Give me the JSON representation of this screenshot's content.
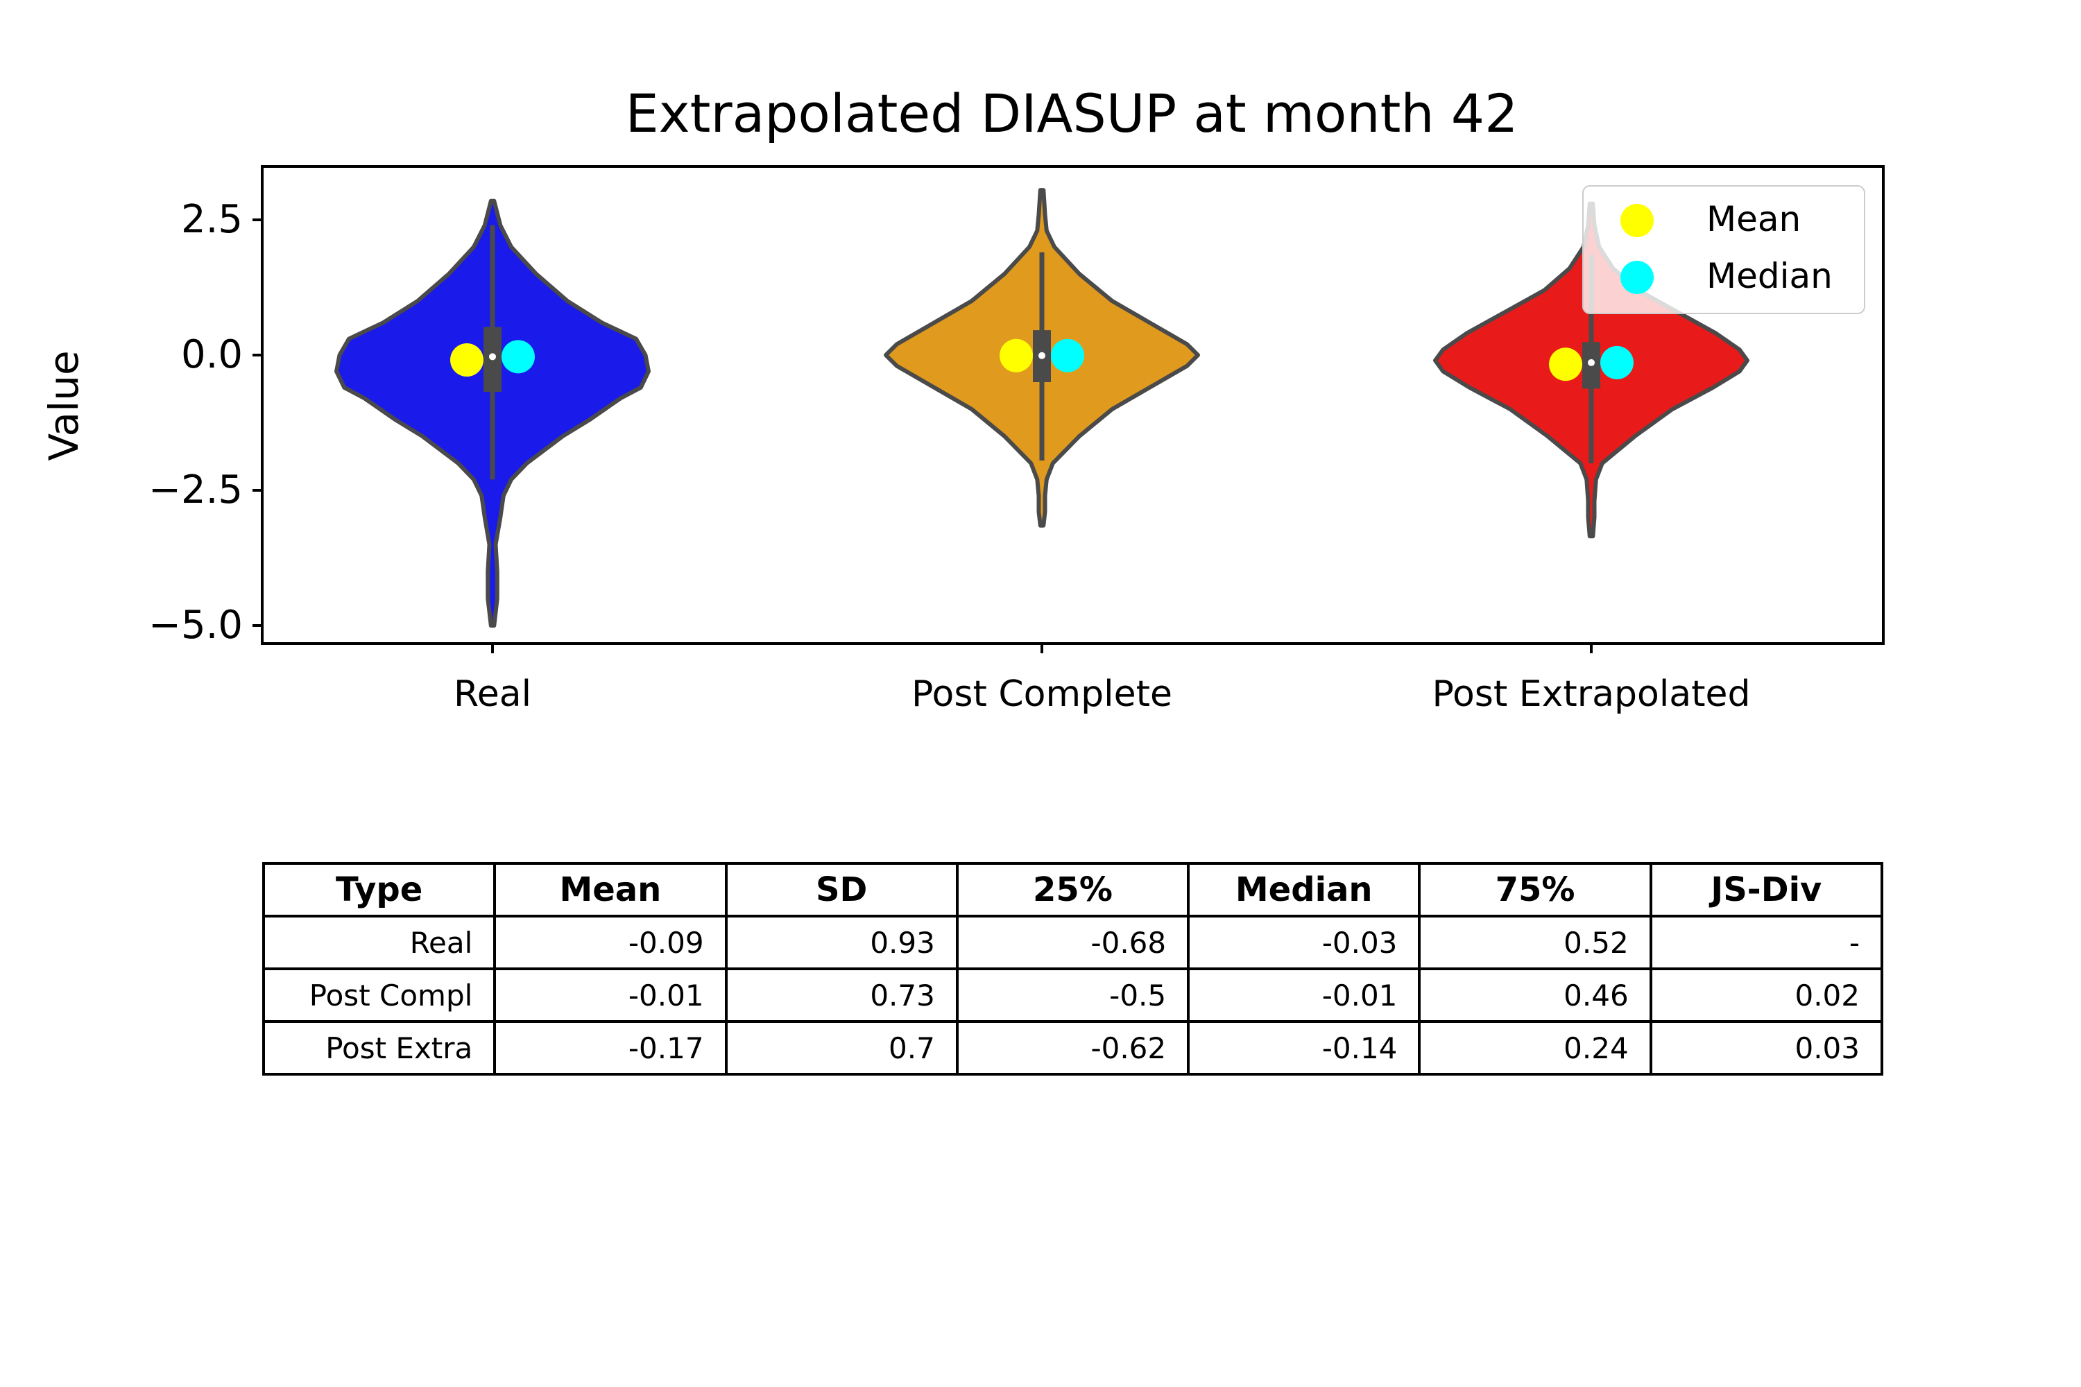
{
  "chart_data": {
    "type": "violin",
    "title": "Extrapolated DIASUP at month 42",
    "xlabel": "",
    "ylabel": "Value",
    "ylim": [
      -5.4,
      3.5
    ],
    "yticks": [
      2.5,
      0.0,
      -2.5,
      -5.0
    ],
    "ytick_labels": [
      "2.5",
      "0.0",
      "−2.5",
      "−5.0"
    ],
    "categories": [
      "Real",
      "Post Complete",
      "Post Extrapolated"
    ],
    "colors": [
      "#1a1aeb",
      "#e09b1f",
      "#e81a1a"
    ],
    "outline_color": "#4a4a4a",
    "series": [
      {
        "category": "Real",
        "mean": -0.09,
        "median": -0.03,
        "q1": -0.68,
        "q3": 0.52,
        "min": -5.0,
        "max": 2.85,
        "whisker_low": -2.3,
        "whisker_high": 2.4,
        "density": [
          [
            -5.0,
            0.01
          ],
          [
            -4.5,
            0.03
          ],
          [
            -4.0,
            0.03
          ],
          [
            -3.5,
            0.02
          ],
          [
            -3.0,
            0.05
          ],
          [
            -2.6,
            0.07
          ],
          [
            -2.3,
            0.12
          ],
          [
            -2.0,
            0.22
          ],
          [
            -1.5,
            0.45
          ],
          [
            -1.2,
            0.62
          ],
          [
            -0.8,
            0.82
          ],
          [
            -0.6,
            0.95
          ],
          [
            -0.3,
            1.0
          ],
          [
            0.0,
            0.98
          ],
          [
            0.3,
            0.92
          ],
          [
            0.6,
            0.7
          ],
          [
            1.0,
            0.48
          ],
          [
            1.5,
            0.28
          ],
          [
            2.0,
            0.12
          ],
          [
            2.4,
            0.05
          ],
          [
            2.85,
            0.01
          ]
        ]
      },
      {
        "category": "Post Complete",
        "mean": -0.01,
        "median": -0.01,
        "q1": -0.5,
        "q3": 0.46,
        "min": -3.15,
        "max": 3.05,
        "whisker_low": -1.95,
        "whisker_high": 1.9,
        "density": [
          [
            -3.15,
            0.01
          ],
          [
            -2.9,
            0.02
          ],
          [
            -2.6,
            0.02
          ],
          [
            -2.3,
            0.03
          ],
          [
            -2.0,
            0.07
          ],
          [
            -1.5,
            0.24
          ],
          [
            -1.0,
            0.45
          ],
          [
            -0.5,
            0.75
          ],
          [
            -0.2,
            0.93
          ],
          [
            0.0,
            1.0
          ],
          [
            0.2,
            0.93
          ],
          [
            0.5,
            0.75
          ],
          [
            1.0,
            0.45
          ],
          [
            1.5,
            0.24
          ],
          [
            2.0,
            0.08
          ],
          [
            2.3,
            0.03
          ],
          [
            2.6,
            0.02
          ],
          [
            3.05,
            0.01
          ]
        ]
      },
      {
        "category": "Post Extrapolated",
        "mean": -0.17,
        "median": -0.14,
        "q1": -0.62,
        "q3": 0.24,
        "min": -3.35,
        "max": 2.8,
        "whisker_low": -2.0,
        "whisker_high": 1.85,
        "density": [
          [
            -3.35,
            0.01
          ],
          [
            -3.0,
            0.02
          ],
          [
            -2.7,
            0.02
          ],
          [
            -2.3,
            0.03
          ],
          [
            -2.0,
            0.07
          ],
          [
            -1.5,
            0.28
          ],
          [
            -1.0,
            0.52
          ],
          [
            -0.6,
            0.78
          ],
          [
            -0.3,
            0.95
          ],
          [
            -0.1,
            1.0
          ],
          [
            0.1,
            0.95
          ],
          [
            0.4,
            0.8
          ],
          [
            0.8,
            0.55
          ],
          [
            1.2,
            0.3
          ],
          [
            1.6,
            0.14
          ],
          [
            2.0,
            0.05
          ],
          [
            2.4,
            0.02
          ],
          [
            2.8,
            0.01
          ]
        ]
      }
    ],
    "legend": {
      "position": "top-right",
      "entries": [
        {
          "label": "Mean",
          "color": "#ffff00"
        },
        {
          "label": "Median",
          "color": "#00ffff"
        }
      ]
    },
    "table": {
      "columns": [
        "Type",
        "Mean",
        "SD",
        "25%",
        "Median",
        "75%",
        "JS-Div"
      ],
      "rows": [
        [
          "Real",
          "-0.09",
          "0.93",
          "-0.68",
          "-0.03",
          "0.52",
          "-"
        ],
        [
          "Post Compl",
          "-0.01",
          "0.73",
          "-0.5",
          "-0.01",
          "0.46",
          "0.02"
        ],
        [
          "Post Extra",
          "-0.17",
          "0.7",
          "-0.62",
          "-0.14",
          "0.24",
          "0.03"
        ]
      ]
    }
  }
}
